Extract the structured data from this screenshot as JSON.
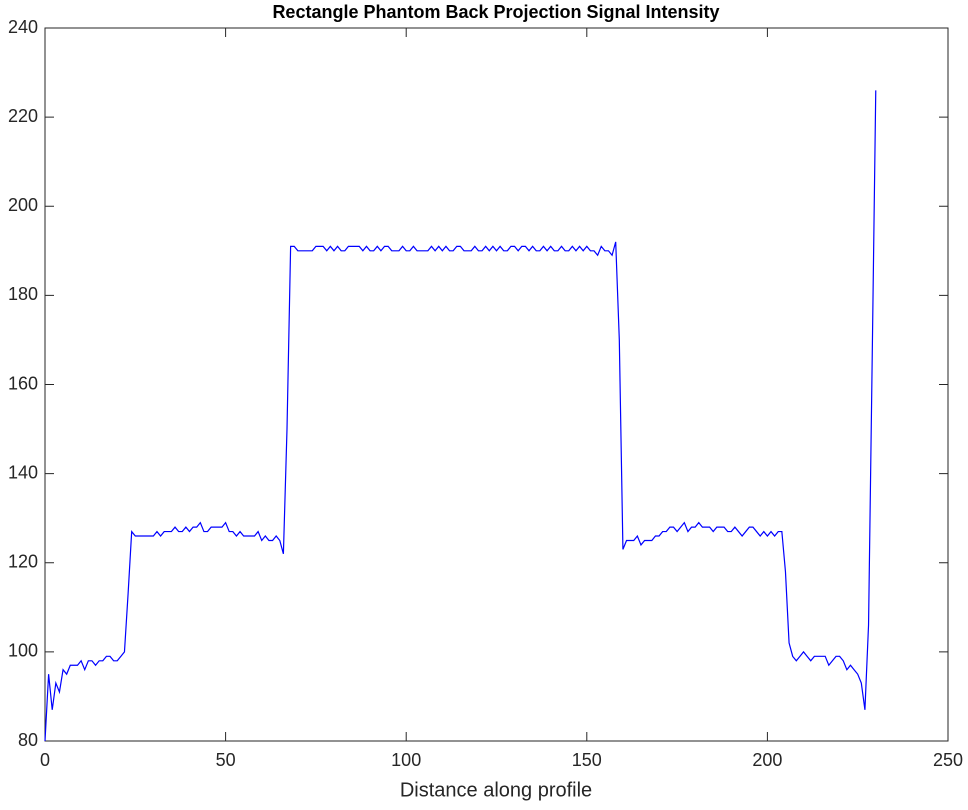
{
  "chart_data": {
    "type": "line",
    "title": "Rectangle Phantom Back Projection Signal Intensity",
    "xlabel": "Distance along profile",
    "color": "#0000ff",
    "xlim": [
      0,
      250
    ],
    "xticks": [
      0,
      50,
      100,
      150,
      200,
      250
    ],
    "ylim": [
      80,
      240
    ],
    "yticks": [
      80,
      100,
      120,
      140,
      160,
      180,
      200,
      220,
      240
    ],
    "grid": false,
    "x": [
      0,
      1,
      2,
      3,
      4,
      5,
      6,
      7,
      8,
      9,
      10,
      11,
      12,
      13,
      14,
      15,
      16,
      17,
      18,
      19,
      20,
      21,
      22,
      23,
      24,
      25,
      26,
      27,
      28,
      29,
      30,
      31,
      32,
      33,
      34,
      35,
      36,
      37,
      38,
      39,
      40,
      41,
      42,
      43,
      44,
      45,
      46,
      47,
      48,
      49,
      50,
      51,
      52,
      53,
      54,
      55,
      56,
      57,
      58,
      59,
      60,
      61,
      62,
      63,
      64,
      65,
      66,
      67,
      68,
      69,
      70,
      71,
      72,
      73,
      74,
      75,
      76,
      77,
      78,
      79,
      80,
      81,
      82,
      83,
      84,
      85,
      86,
      87,
      88,
      89,
      90,
      91,
      92,
      93,
      94,
      95,
      96,
      97,
      98,
      99,
      100,
      101,
      102,
      103,
      104,
      105,
      106,
      107,
      108,
      109,
      110,
      111,
      112,
      113,
      114,
      115,
      116,
      117,
      118,
      119,
      120,
      121,
      122,
      123,
      124,
      125,
      126,
      127,
      128,
      129,
      130,
      131,
      132,
      133,
      134,
      135,
      136,
      137,
      138,
      139,
      140,
      141,
      142,
      143,
      144,
      145,
      146,
      147,
      148,
      149,
      150,
      151,
      152,
      153,
      154,
      155,
      156,
      157,
      158,
      159,
      160,
      161,
      162,
      163,
      164,
      165,
      166,
      167,
      168,
      169,
      170,
      171,
      172,
      173,
      174,
      175,
      176,
      177,
      178,
      179,
      180,
      181,
      182,
      183,
      184,
      185,
      186,
      187,
      188,
      189,
      190,
      191,
      192,
      193,
      194,
      195,
      196,
      197,
      198,
      199,
      200,
      201,
      202,
      203,
      204,
      205,
      206,
      207,
      208,
      209,
      210,
      211,
      212,
      213,
      214,
      215,
      216,
      217,
      218,
      219,
      220,
      221,
      222,
      223,
      224,
      225,
      226,
      227,
      228,
      229,
      230
    ],
    "values": [
      80,
      95,
      87,
      93,
      91,
      96,
      95,
      97,
      97,
      97,
      98,
      96,
      98,
      98,
      97,
      98,
      98,
      99,
      99,
      98,
      98,
      99,
      100,
      113,
      127,
      126,
      126,
      126,
      126,
      126,
      126,
      127,
      126,
      127,
      127,
      127,
      128,
      127,
      127,
      128,
      127,
      128,
      128,
      129,
      127,
      127,
      128,
      128,
      128,
      128,
      129,
      127,
      127,
      126,
      127,
      126,
      126,
      126,
      126,
      127,
      125,
      126,
      125,
      125,
      126,
      125,
      122,
      150,
      191,
      191,
      190,
      190,
      190,
      190,
      190,
      191,
      191,
      191,
      190,
      191,
      190,
      191,
      190,
      190,
      191,
      191,
      191,
      191,
      190,
      191,
      190,
      190,
      191,
      190,
      191,
      191,
      190,
      190,
      190,
      191,
      190,
      190,
      191,
      190,
      190,
      190,
      190,
      191,
      190,
      191,
      190,
      191,
      190,
      190,
      191,
      191,
      190,
      190,
      190,
      191,
      190,
      190,
      191,
      190,
      191,
      190,
      191,
      190,
      190,
      191,
      191,
      190,
      191,
      191,
      190,
      191,
      190,
      190,
      191,
      190,
      191,
      190,
      190,
      191,
      190,
      190,
      191,
      190,
      191,
      190,
      191,
      190,
      190,
      189,
      191,
      190,
      190,
      189,
      192,
      170,
      123,
      125,
      125,
      125,
      126,
      124,
      125,
      125,
      125,
      126,
      126,
      127,
      127,
      128,
      128,
      127,
      128,
      129,
      127,
      128,
      128,
      129,
      128,
      128,
      128,
      127,
      128,
      128,
      128,
      127,
      127,
      128,
      127,
      126,
      127,
      128,
      128,
      127,
      126,
      127,
      126,
      127,
      126,
      127,
      127,
      118,
      102,
      99,
      98,
      99,
      100,
      99,
      98,
      99,
      99,
      99,
      99,
      97,
      98,
      99,
      99,
      98,
      96,
      97,
      96,
      95,
      93,
      87,
      106,
      165,
      226
    ]
  }
}
